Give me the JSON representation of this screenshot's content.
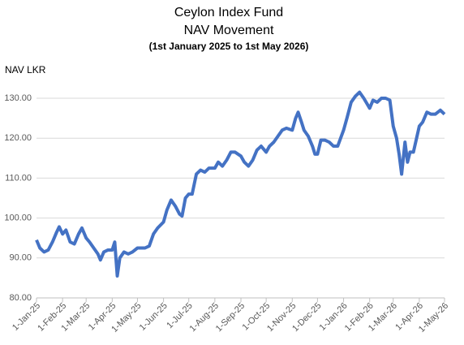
{
  "chart_data": {
    "type": "line",
    "title": "Ceylon Index Fund",
    "subtitle": "NAV Movement",
    "period": "(1st January 2025 to 1st May 2026)",
    "y_label": "NAV LKR",
    "x": [
      "2025-01-01",
      "2025-01-05",
      "2025-01-10",
      "2025-01-15",
      "2025-01-20",
      "2025-01-25",
      "2025-01-28",
      "2025-02-01",
      "2025-02-05",
      "2025-02-10",
      "2025-02-15",
      "2025-02-20",
      "2025-02-24",
      "2025-03-01",
      "2025-03-05",
      "2025-03-10",
      "2025-03-15",
      "2025-03-18",
      "2025-03-22",
      "2025-03-27",
      "2025-04-01",
      "2025-04-04",
      "2025-04-07",
      "2025-04-10",
      "2025-04-15",
      "2025-04-20",
      "2025-04-25",
      "2025-05-01",
      "2025-05-10",
      "2025-05-15",
      "2025-05-20",
      "2025-05-25",
      "2025-06-01",
      "2025-06-05",
      "2025-06-10",
      "2025-06-15",
      "2025-06-20",
      "2025-06-23",
      "2025-06-27",
      "2025-07-01",
      "2025-07-05",
      "2025-07-10",
      "2025-07-15",
      "2025-07-20",
      "2025-07-25",
      "2025-08-01",
      "2025-08-05",
      "2025-08-10",
      "2025-08-15",
      "2025-08-20",
      "2025-08-25",
      "2025-09-01",
      "2025-09-05",
      "2025-09-10",
      "2025-09-15",
      "2025-09-20",
      "2025-09-25",
      "2025-10-01",
      "2025-10-05",
      "2025-10-10",
      "2025-10-15",
      "2025-10-20",
      "2025-10-25",
      "2025-11-01",
      "2025-11-05",
      "2025-11-08",
      "2025-11-12",
      "2025-11-15",
      "2025-11-20",
      "2025-11-25",
      "2025-11-28",
      "2025-12-01",
      "2025-12-05",
      "2025-12-10",
      "2025-12-15",
      "2025-12-20",
      "2025-12-25",
      "2026-01-01",
      "2026-01-05",
      "2026-01-10",
      "2026-01-15",
      "2026-01-20",
      "2026-01-25",
      "2026-02-01",
      "2026-02-05",
      "2026-02-10",
      "2026-02-15",
      "2026-02-20",
      "2026-02-25",
      "2026-03-01",
      "2026-03-05",
      "2026-03-08",
      "2026-03-11",
      "2026-03-15",
      "2026-03-18",
      "2026-03-21",
      "2026-03-25",
      "2026-04-01",
      "2026-04-05",
      "2026-04-10",
      "2026-04-15",
      "2026-04-20",
      "2026-04-26",
      "2026-05-01"
    ],
    "series": [
      {
        "name": "NAV",
        "color": "#4472c4",
        "values": [
          94.5,
          92.5,
          91.5,
          92,
          94,
          96.5,
          97.8,
          96,
          97,
          94,
          93.5,
          96,
          97.5,
          95,
          94,
          92.5,
          91,
          89.5,
          91.5,
          92,
          92,
          94,
          85.5,
          90,
          91.5,
          91,
          91.5,
          92.5,
          92.5,
          93,
          96,
          97.5,
          99,
          102,
          104.5,
          103,
          101,
          100.5,
          105,
          106,
          106,
          111,
          112,
          111.5,
          112.5,
          112.5,
          114,
          113,
          114.5,
          116.5,
          116.5,
          115.5,
          114,
          113,
          114.5,
          117,
          118,
          116.5,
          118,
          119,
          120.5,
          122,
          122.5,
          122,
          125,
          126.5,
          124,
          122,
          120.5,
          118,
          116,
          116,
          119.5,
          119.5,
          119,
          118,
          118,
          122,
          125,
          129,
          130.5,
          131.5,
          130,
          127.5,
          129.5,
          129,
          130,
          130,
          129.5,
          123,
          120,
          116,
          111,
          119,
          114,
          116.5,
          116.5,
          123,
          124,
          126.5,
          126,
          126,
          127,
          126
        ]
      }
    ],
    "xlim": [
      "2025-01-01",
      "2026-05-01"
    ],
    "xticks": [
      {
        "value": "2025-01-01",
        "label": "1-Jan-25"
      },
      {
        "value": "2025-02-01",
        "label": "1-Feb-25"
      },
      {
        "value": "2025-03-01",
        "label": "1-Mar-25"
      },
      {
        "value": "2025-04-01",
        "label": "1-Apr-25"
      },
      {
        "value": "2025-05-01",
        "label": "1-May-25"
      },
      {
        "value": "2025-06-01",
        "label": "1-Jun-25"
      },
      {
        "value": "2025-07-01",
        "label": "1-Jul-25"
      },
      {
        "value": "2025-08-01",
        "label": "1-Aug-25"
      },
      {
        "value": "2025-09-01",
        "label": "1-Sep-25"
      },
      {
        "value": "2025-10-01",
        "label": "1-Oct-25"
      },
      {
        "value": "2025-11-01",
        "label": "1-Nov-25"
      },
      {
        "value": "2025-12-01",
        "label": "1-Dec-25"
      },
      {
        "value": "2026-01-01",
        "label": "1-Jan-26"
      },
      {
        "value": "2026-02-01",
        "label": "1-Feb-26"
      },
      {
        "value": "2026-03-01",
        "label": "1-Mar-26"
      },
      {
        "value": "2026-04-01",
        "label": "1-Apr-26"
      },
      {
        "value": "2026-05-01",
        "label": "1-May-26"
      }
    ],
    "ylim": [
      80,
      130
    ],
    "yticks": [
      {
        "value": 80,
        "label": "80.00"
      },
      {
        "value": 90,
        "label": "90.00"
      },
      {
        "value": 100,
        "label": "100.00"
      },
      {
        "value": 110,
        "label": "110.00"
      },
      {
        "value": 120,
        "label": "120.00"
      },
      {
        "value": 130,
        "label": "130.00"
      }
    ],
    "grid": true
  }
}
